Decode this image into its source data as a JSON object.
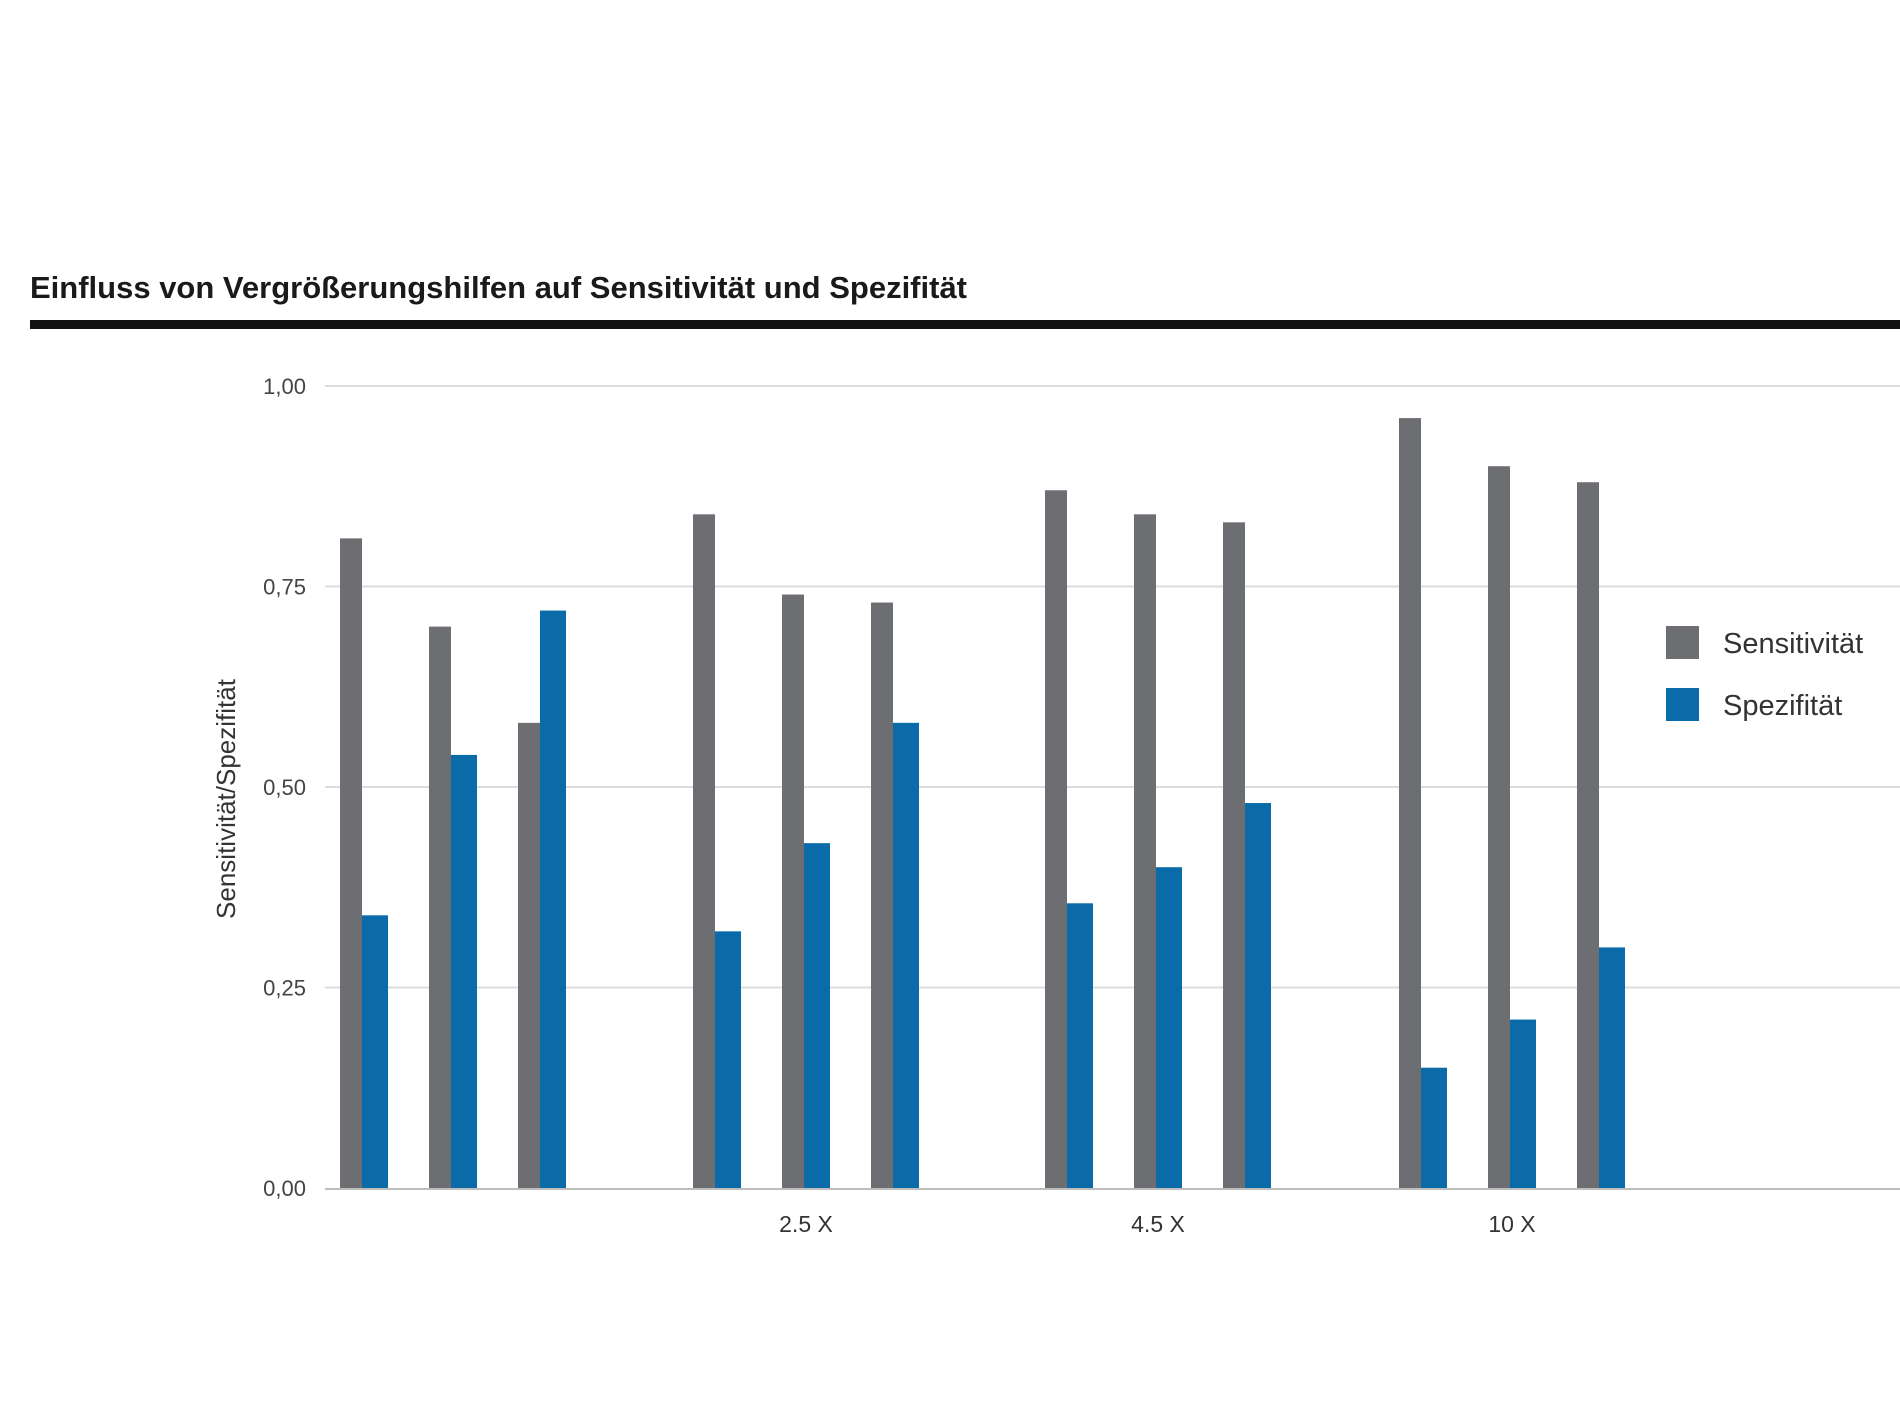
{
  "chart_data": {
    "type": "bar",
    "title": "Einfluss von Vergrößerungshilfen auf Sensitivität und Spezifität",
    "xlabel": "",
    "ylabel": "Sensitivität/Spezifität",
    "ylim": [
      0,
      1
    ],
    "yticks": [
      0,
      0.25,
      0.5,
      0.75,
      1
    ],
    "ytick_labels": [
      "0,00",
      "0,25",
      "0,50",
      "0,75",
      "1,00"
    ],
    "grid": true,
    "legend_position": "right",
    "categories": [
      "",
      "2.5 X",
      "4.5 X",
      "10 X"
    ],
    "bars_per_category": 3,
    "series": [
      {
        "name": "Sensitivität",
        "color": "#6d6e71",
        "values": [
          [
            0.81,
            0.7,
            0.58
          ],
          [
            0.84,
            0.74,
            0.73
          ],
          [
            0.87,
            0.84,
            0.83
          ],
          [
            0.96,
            0.9,
            0.88
          ]
        ]
      },
      {
        "name": "Spezifität",
        "color": "#0a6ba8",
        "values": [
          [
            0.34,
            0.54,
            0.72
          ],
          [
            0.32,
            0.43,
            0.58
          ],
          [
            0.355,
            0.4,
            0.48
          ],
          [
            0.15,
            0.21,
            0.3
          ]
        ]
      }
    ]
  }
}
